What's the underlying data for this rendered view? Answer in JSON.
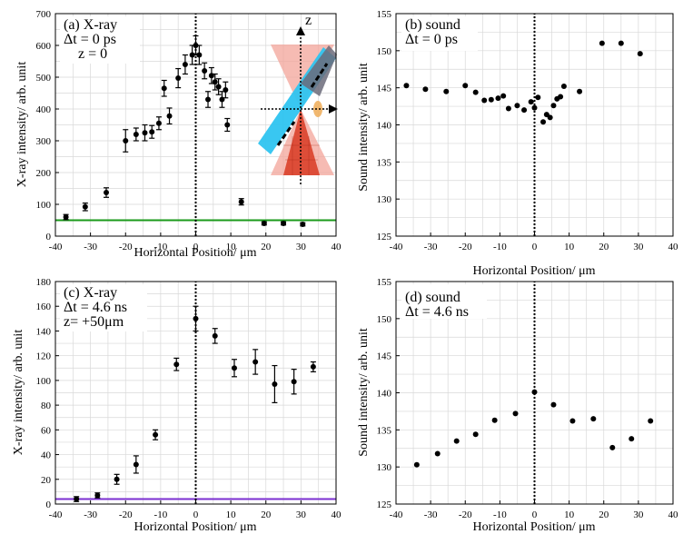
{
  "colors": {
    "point": "#000000",
    "baseline_a": "#1a9a1a",
    "baseline_c": "#7b2fd0",
    "grid": "#d8d8d8",
    "inset_pink": "#f3a49a",
    "inset_red": "#d83a22",
    "inset_blue": "#2ec4f0",
    "inset_gray": "#6b6b7a",
    "inset_orange": "#f0b060"
  },
  "chart_data": [
    {
      "id": "a",
      "type": "scatter",
      "label_lines": [
        "(a) X-ray",
        "Δt = 0 ps",
        "z = 0"
      ],
      "xlabel": "Horizontal Position/ μm",
      "ylabel": "X-ray intensity/ arb. unit",
      "xlim": [
        -40,
        40
      ],
      "ylim": [
        0,
        700
      ],
      "xticks": [
        -40,
        -30,
        -20,
        -10,
        0,
        10,
        20,
        30,
        40
      ],
      "yticks": [
        0,
        100,
        200,
        300,
        400,
        500,
        600,
        700
      ],
      "x": [
        -37,
        -31.5,
        -25.5,
        -20,
        -17,
        -14.5,
        -12.5,
        -10.5,
        -9,
        -7.5,
        -5,
        -3,
        -1,
        0,
        1,
        2.5,
        3.5,
        4.5,
        5.5,
        6.5,
        7.5,
        8.5,
        9,
        13,
        19.5,
        25,
        30.5
      ],
      "y": [
        60,
        92,
        137,
        300,
        320,
        325,
        328,
        355,
        465,
        378,
        497,
        540,
        570,
        600,
        570,
        520,
        430,
        505,
        485,
        470,
        430,
        460,
        350,
        108,
        40,
        40,
        37
      ],
      "err": [
        8,
        12,
        15,
        35,
        20,
        25,
        20,
        20,
        25,
        25,
        30,
        30,
        30,
        30,
        30,
        25,
        25,
        25,
        25,
        25,
        25,
        25,
        20,
        10,
        5,
        5,
        5
      ],
      "baseline": 50,
      "vline_x": 0,
      "inset_axis_label": "z"
    },
    {
      "id": "b",
      "type": "scatter",
      "label_lines": [
        "(b) sound",
        "Δt = 0 ps"
      ],
      "xlabel": "Horizontal Position/ μm",
      "ylabel": "Sound intensity/ arb. unit",
      "xlim": [
        -40,
        40
      ],
      "ylim": [
        125,
        155
      ],
      "xticks": [
        -40,
        -30,
        -20,
        -10,
        0,
        10,
        20,
        30,
        40
      ],
      "yticks": [
        125,
        130,
        135,
        140,
        145,
        150,
        155
      ],
      "x": [
        -37,
        -31.5,
        -25.5,
        -20,
        -17,
        -14.5,
        -12.5,
        -10.5,
        -9,
        -7.5,
        -5,
        -3,
        -1,
        0,
        1,
        2.5,
        3.5,
        4.5,
        5.5,
        6.5,
        7.5,
        8.5,
        13,
        19.5,
        25,
        30.5
      ],
      "y": [
        145.3,
        144.8,
        144.5,
        145.3,
        144.4,
        143.3,
        143.4,
        143.6,
        143.9,
        142.2,
        142.6,
        142.0,
        143.1,
        142.3,
        143.7,
        140.4,
        141.4,
        141.0,
        142.6,
        143.5,
        143.8,
        145.2,
        144.5,
        151.0,
        151.0,
        149.6
      ],
      "vline_x": 0
    },
    {
      "id": "c",
      "type": "scatter",
      "label_lines": [
        "(c) X-ray",
        "Δt = 4.6 ns",
        "z= +50μm"
      ],
      "xlabel": "Horizontal Position/ μm",
      "ylabel": "X-ray intensity/ arb. unit",
      "xlim": [
        -40,
        40
      ],
      "ylim": [
        0,
        180
      ],
      "xticks": [
        -40,
        -30,
        -20,
        -10,
        0,
        10,
        20,
        30,
        40
      ],
      "yticks": [
        0,
        20,
        40,
        60,
        80,
        100,
        120,
        140,
        160,
        180
      ],
      "x": [
        -34,
        -28,
        -22.5,
        -17,
        -11.5,
        -5.5,
        0,
        5.5,
        11,
        17,
        22.5,
        28,
        33.5
      ],
      "y": [
        4,
        7,
        20,
        32,
        56,
        113,
        150,
        136,
        110,
        115,
        97,
        99,
        111
      ],
      "err": [
        2,
        2,
        4,
        7,
        4,
        5,
        10,
        6,
        7,
        10,
        15,
        10,
        4
      ],
      "baseline": 4,
      "vline_x": 0
    },
    {
      "id": "d",
      "type": "scatter",
      "label_lines": [
        "(d) sound",
        "Δt = 4.6 ns"
      ],
      "xlabel": "Horizontal Position/ μm",
      "ylabel": "Sound intensity/ arb. unit",
      "xlim": [
        -40,
        40
      ],
      "ylim": [
        125,
        155
      ],
      "xticks": [
        -40,
        -30,
        -20,
        -10,
        0,
        10,
        20,
        30,
        40
      ],
      "yticks": [
        125,
        130,
        135,
        140,
        145,
        150,
        155
      ],
      "x": [
        -34,
        -28,
        -22.5,
        -17,
        -11.5,
        -5.5,
        0,
        5.5,
        11,
        17,
        22.5,
        28,
        33.5
      ],
      "y": [
        130.3,
        131.8,
        133.5,
        134.4,
        136.3,
        137.2,
        140.1,
        138.4,
        136.2,
        136.5,
        132.6,
        133.8,
        136.2
      ],
      "vline_x": 0
    }
  ]
}
